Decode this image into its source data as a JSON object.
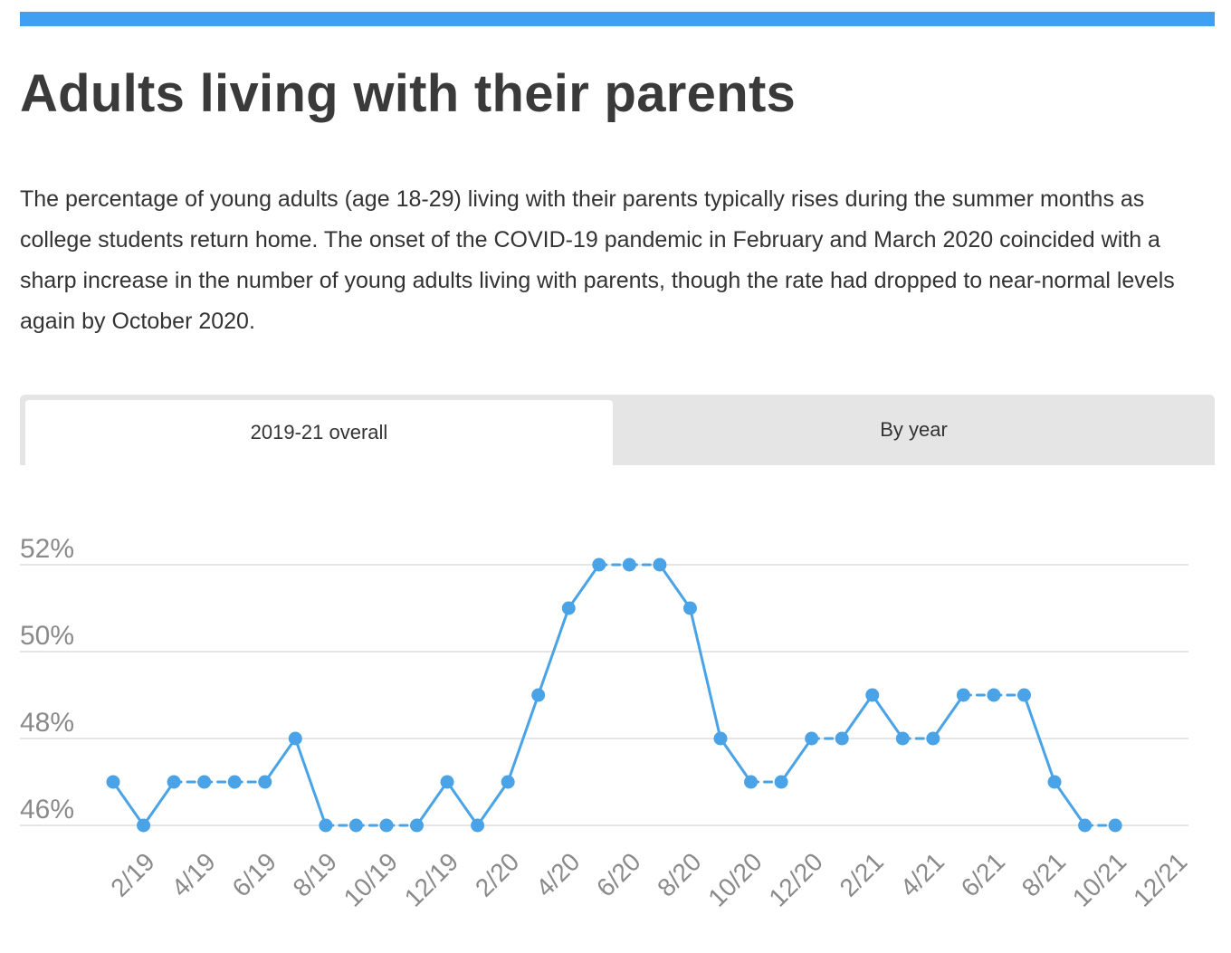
{
  "header": {
    "title": "Adults living with their parents",
    "description": "The percentage of young adults (age 18-29) living with their parents typically rises during the summer months as college students return home.  The onset of the COVID-19 pandemic in February and March 2020 coincided with a sharp increase in the number of young adults living with parents, though the rate had dropped to near-normal levels again by October 2020."
  },
  "tabs": [
    {
      "label": "2019-21 overall",
      "active": true
    },
    {
      "label": "By year",
      "active": false
    }
  ],
  "colors": {
    "accent": "#3f9ff0",
    "line": "#4aa3e6",
    "grid": "#dddddd",
    "tick_label": "#8a8a8a"
  },
  "chart_data": {
    "type": "line",
    "title": "",
    "xlabel": "",
    "ylabel": "",
    "ylim": [
      46,
      52
    ],
    "grid": true,
    "x_tick_labels": [
      "2/19",
      "4/19",
      "6/19",
      "8/19",
      "10/19",
      "12/19",
      "2/20",
      "4/20",
      "6/20",
      "8/20",
      "10/20",
      "12/20",
      "2/21",
      "4/21",
      "6/21",
      "8/21",
      "10/21",
      "12/21"
    ],
    "y_tick_labels": [
      "52%",
      "50%",
      "48%",
      "46%"
    ],
    "y_ticks": [
      52,
      50,
      48,
      46
    ],
    "x": [
      "1/19",
      "2/19",
      "3/19",
      "4/19",
      "5/19",
      "6/19",
      "7/19",
      "8/19",
      "9/19",
      "10/19",
      "11/19",
      "12/19",
      "1/20",
      "2/20",
      "3/20",
      "4/20",
      "5/20",
      "6/20",
      "7/20",
      "8/20",
      "9/20",
      "10/20",
      "11/20",
      "12/20",
      "1/21",
      "2/21",
      "3/21",
      "4/21",
      "5/21",
      "6/21",
      "7/21",
      "8/21",
      "9/21",
      "10/21"
    ],
    "series": [
      {
        "values": [
          47,
          46,
          47,
          47,
          47,
          47,
          48,
          46,
          46,
          46,
          46,
          47,
          46,
          47,
          49,
          51,
          52,
          52,
          52,
          51,
          48,
          47,
          47,
          48,
          48,
          49,
          48,
          48,
          49,
          49,
          49,
          47,
          46,
          46
        ],
        "dashed_flat_segments": true
      }
    ]
  }
}
